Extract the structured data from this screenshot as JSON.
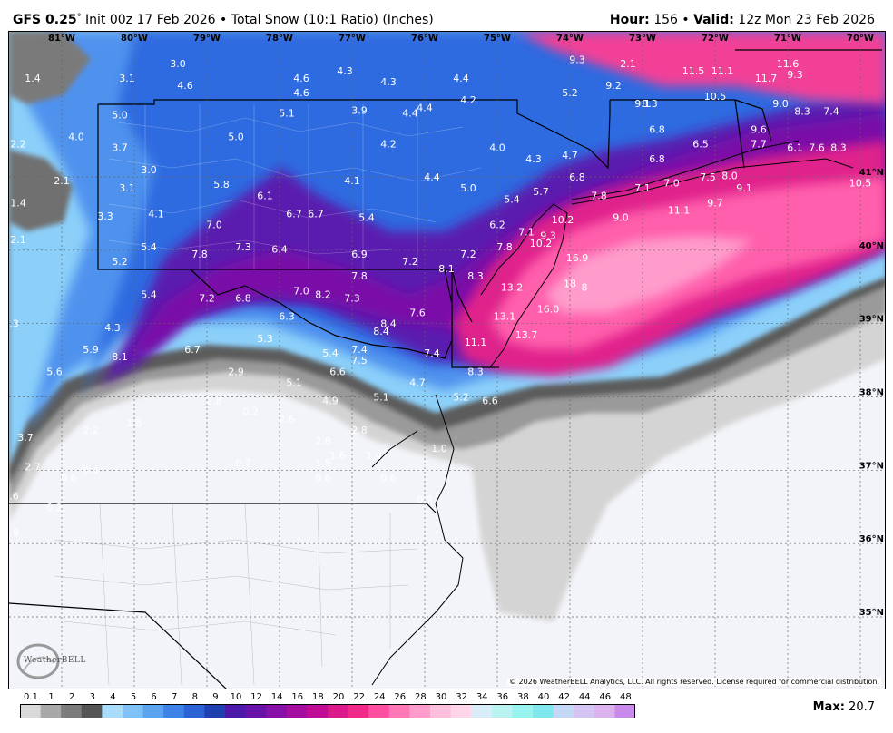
{
  "header": {
    "model": "GFS 0.25",
    "degree": "°",
    "init": "Init 00z 17 Feb 2026",
    "bullet": "•",
    "product": "Total Snow (10:1 Ratio) (Inches)",
    "hour_label": "Hour:",
    "hour_value": "156",
    "valid_label": "Valid:",
    "valid_value": "12z Mon 23 Feb 2026"
  },
  "copyright": "© 2026 WeatherBELL Analytics, LLC. All rights reserved. License required for commercial distribution.",
  "logo_text": "WeatherBELL",
  "max": {
    "label": "Max:",
    "value": "20.7"
  },
  "longitude_ticks": [
    "81°W",
    "80°W",
    "79°W",
    "78°W",
    "77°W",
    "76°W",
    "75°W",
    "74°W",
    "73°W",
    "72°W",
    "71°W",
    "70°W"
  ],
  "latitude_ticks": [
    "41°N",
    "40°N",
    "39°N",
    "38°N",
    "37°N",
    "36°N",
    "35°N"
  ],
  "colorbar": {
    "labels": [
      "0.1",
      "1",
      "2",
      "3",
      "4",
      "5",
      "6",
      "7",
      "8",
      "9",
      "10",
      "12",
      "14",
      "16",
      "18",
      "20",
      "22",
      "24",
      "26",
      "28",
      "30",
      "32",
      "34",
      "36",
      "38",
      "40",
      "42",
      "44",
      "46",
      "48"
    ],
    "colors": [
      "#d9d9d9",
      "#a8a8a8",
      "#7c7c7c",
      "#555555",
      "#a8dcfb",
      "#7fc2f8",
      "#5aa4f0",
      "#3d84e6",
      "#2b62d4",
      "#2040b0",
      "#4b1aa8",
      "#6a12a8",
      "#8810a8",
      "#a30ea0",
      "#bf0e95",
      "#db1a8c",
      "#f02a88",
      "#ff4fa0",
      "#ff78b8",
      "#ff9ccb",
      "#ffbfdd",
      "#ffd5e8",
      "#d8ecf9",
      "#b9f2f0",
      "#96f3ee",
      "#7fe8ec",
      "#c4d7f5",
      "#d3c4f2",
      "#dcb2ee",
      "#c78aea"
    ]
  },
  "map_values": [
    {
      "v": "1.4",
      "lon": -81.4,
      "lat": 42.3
    },
    {
      "v": "4.6",
      "lon": -79.3,
      "lat": 42.2
    },
    {
      "v": "3.0",
      "lon": -79.4,
      "lat": 42.5
    },
    {
      "v": "3.1",
      "lon": -80.1,
      "lat": 42.3
    },
    {
      "v": "4.6",
      "lon": -77.7,
      "lat": 42.3
    },
    {
      "v": "4.6",
      "lon": -77.7,
      "lat": 42.1
    },
    {
      "v": "4.3",
      "lon": -77.1,
      "lat": 42.4
    },
    {
      "v": "4.3",
      "lon": -76.5,
      "lat": 42.25
    },
    {
      "v": "4.4",
      "lon": -75.5,
      "lat": 42.3
    },
    {
      "v": "4.2",
      "lon": -75.4,
      "lat": 42.0
    },
    {
      "v": "4.4",
      "lon": -76.0,
      "lat": 41.9
    },
    {
      "v": "4.4",
      "lon": -76.2,
      "lat": 41.82
    },
    {
      "v": "5.0",
      "lon": -80.2,
      "lat": 41.8
    },
    {
      "v": "5.1",
      "lon": -77.9,
      "lat": 41.82
    },
    {
      "v": "3.9",
      "lon": -76.9,
      "lat": 41.86
    },
    {
      "v": "2.2",
      "lon": -81.6,
      "lat": 41.4
    },
    {
      "v": "4.0",
      "lon": -80.8,
      "lat": 41.5
    },
    {
      "v": "3.7",
      "lon": -80.2,
      "lat": 41.35
    },
    {
      "v": "5.0",
      "lon": -78.6,
      "lat": 41.5
    },
    {
      "v": "4.2",
      "lon": -76.5,
      "lat": 41.4
    },
    {
      "v": "4.0",
      "lon": -75.0,
      "lat": 41.35
    },
    {
      "v": "4.3",
      "lon": -74.5,
      "lat": 41.2
    },
    {
      "v": "4.7",
      "lon": -74.0,
      "lat": 41.25
    },
    {
      "v": "2.1",
      "lon": -81.0,
      "lat": 40.9
    },
    {
      "v": "3.0",
      "lon": -79.8,
      "lat": 41.05
    },
    {
      "v": "3.1",
      "lon": -80.1,
      "lat": 40.8
    },
    {
      "v": "1.4",
      "lon": -81.6,
      "lat": 40.6
    },
    {
      "v": "5.8",
      "lon": -78.8,
      "lat": 40.85
    },
    {
      "v": "6.1",
      "lon": -78.2,
      "lat": 40.7
    },
    {
      "v": "4.1",
      "lon": -77.0,
      "lat": 40.9
    },
    {
      "v": "4.4",
      "lon": -75.9,
      "lat": 40.95
    },
    {
      "v": "5.0",
      "lon": -75.4,
      "lat": 40.8
    },
    {
      "v": "5.4",
      "lon": -74.8,
      "lat": 40.65
    },
    {
      "v": "5.7",
      "lon": -74.4,
      "lat": 40.75
    },
    {
      "v": "6.8",
      "lon": -73.9,
      "lat": 40.95
    },
    {
      "v": "7.8",
      "lon": -73.6,
      "lat": 40.7
    },
    {
      "v": "7.1",
      "lon": -73.0,
      "lat": 40.8
    },
    {
      "v": "7.0",
      "lon": -72.6,
      "lat": 40.87
    },
    {
      "v": "7.5",
      "lon": -72.1,
      "lat": 40.95
    },
    {
      "v": "8.0",
      "lon": -71.8,
      "lat": 40.97
    },
    {
      "v": "9.1",
      "lon": -71.6,
      "lat": 40.8
    },
    {
      "v": "10.5",
      "lon": -70.0,
      "lat": 40.87
    },
    {
      "v": "6.8",
      "lon": -72.8,
      "lat": 41.2
    },
    {
      "v": "6.5",
      "lon": -72.2,
      "lat": 41.4
    },
    {
      "v": "6.8",
      "lon": -72.8,
      "lat": 41.6
    },
    {
      "v": "7.7",
      "lon": -71.4,
      "lat": 41.4
    },
    {
      "v": "6.1",
      "lon": -70.9,
      "lat": 41.35
    },
    {
      "v": "7.6",
      "lon": -70.6,
      "lat": 41.35
    },
    {
      "v": "8.3",
      "lon": -70.3,
      "lat": 41.35
    },
    {
      "v": "9.6",
      "lon": -71.4,
      "lat": 41.6
    },
    {
      "v": "9.7",
      "lon": -72.0,
      "lat": 40.6
    },
    {
      "v": "11.1",
      "lon": -72.5,
      "lat": 40.5
    },
    {
      "v": "9.0",
      "lon": -73.3,
      "lat": 40.4
    },
    {
      "v": "10.2",
      "lon": -74.1,
      "lat": 40.37
    },
    {
      "v": "6.7",
      "lon": -77.8,
      "lat": 40.45
    },
    {
      "v": "6.7",
      "lon": -77.5,
      "lat": 40.45
    },
    {
      "v": "5.4",
      "lon": -76.8,
      "lat": 40.4
    },
    {
      "v": "4.1",
      "lon": -79.7,
      "lat": 40.45
    },
    {
      "v": "3.3",
      "lon": -80.4,
      "lat": 40.42
    },
    {
      "v": "2.1",
      "lon": -81.6,
      "lat": 40.1
    },
    {
      "v": "7.0",
      "lon": -78.9,
      "lat": 40.3
    },
    {
      "v": "7.3",
      "lon": -78.5,
      "lat": 40.0
    },
    {
      "v": "6.4",
      "lon": -78.0,
      "lat": 39.97
    },
    {
      "v": "6.2",
      "lon": -75.0,
      "lat": 40.3
    },
    {
      "v": "7.1",
      "lon": -74.6,
      "lat": 40.2
    },
    {
      "v": "9.3",
      "lon": -74.3,
      "lat": 40.15
    },
    {
      "v": "10.2",
      "lon": -74.4,
      "lat": 40.05
    },
    {
      "v": "7.8",
      "lon": -74.9,
      "lat": 40.0
    },
    {
      "v": "5.4",
      "lon": -79.8,
      "lat": 40.0
    },
    {
      "v": "5.2",
      "lon": -80.2,
      "lat": 39.8
    },
    {
      "v": "7.8",
      "lon": -79.1,
      "lat": 39.9
    },
    {
      "v": "6.9",
      "lon": -76.9,
      "lat": 39.9
    },
    {
      "v": "7.2",
      "lon": -76.2,
      "lat": 39.8
    },
    {
      "v": "7.2",
      "lon": -75.4,
      "lat": 39.9
    },
    {
      "v": "8.1",
      "lon": -75.7,
      "lat": 39.7
    },
    {
      "v": "16.9",
      "lon": -73.9,
      "lat": 39.85
    },
    {
      "v": "7.8",
      "lon": -76.9,
      "lat": 39.6
    },
    {
      "v": "8.3",
      "lon": -75.3,
      "lat": 39.6
    },
    {
      "v": "13.2",
      "lon": -74.8,
      "lat": 39.45
    },
    {
      "v": "18",
      "lon": -74.0,
      "lat": 39.5
    },
    {
      "v": "8",
      "lon": -73.8,
      "lat": 39.45
    },
    {
      "v": "5.4",
      "lon": -79.8,
      "lat": 39.35
    },
    {
      "v": "7.2",
      "lon": -79.0,
      "lat": 39.3
    },
    {
      "v": "6.8",
      "lon": -78.5,
      "lat": 39.3
    },
    {
      "v": "7.0",
      "lon": -77.7,
      "lat": 39.4
    },
    {
      "v": "8.2",
      "lon": -77.4,
      "lat": 39.35
    },
    {
      "v": "7.3",
      "lon": -77.0,
      "lat": 39.3
    },
    {
      "v": "7.6",
      "lon": -76.1,
      "lat": 39.1
    },
    {
      "v": "8.4",
      "lon": -76.5,
      "lat": 38.95
    },
    {
      "v": "8.4",
      "lon": -76.6,
      "lat": 38.85
    },
    {
      "v": "6.3",
      "lon": -77.9,
      "lat": 39.05
    },
    {
      "v": "16.0",
      "lon": -74.3,
      "lat": 39.15
    },
    {
      "v": "13.1",
      "lon": -74.9,
      "lat": 39.05
    },
    {
      "v": "13.7",
      "lon": -74.6,
      "lat": 38.8
    },
    {
      "v": "11.1",
      "lon": -75.3,
      "lat": 38.7
    },
    {
      "v": "4.3",
      "lon": -81.7,
      "lat": 38.95
    },
    {
      "v": "4.3",
      "lon": -80.3,
      "lat": 38.9
    },
    {
      "v": "5.9",
      "lon": -80.6,
      "lat": 38.6
    },
    {
      "v": "8.1",
      "lon": -80.2,
      "lat": 38.5
    },
    {
      "v": "6.7",
      "lon": -79.2,
      "lat": 38.6
    },
    {
      "v": "5.3",
      "lon": -78.2,
      "lat": 38.75
    },
    {
      "v": "5.4",
      "lon": -77.3,
      "lat": 38.55
    },
    {
      "v": "7.4",
      "lon": -76.9,
      "lat": 38.6
    },
    {
      "v": "7.5",
      "lon": -76.9,
      "lat": 38.45
    },
    {
      "v": "7.4",
      "lon": -75.9,
      "lat": 38.55
    },
    {
      "v": "6.6",
      "lon": -77.2,
      "lat": 38.3
    },
    {
      "v": "2.9",
      "lon": -78.6,
      "lat": 38.3
    },
    {
      "v": "5.6",
      "lon": -81.1,
      "lat": 38.3
    },
    {
      "v": "8.3",
      "lon": -75.3,
      "lat": 38.3
    },
    {
      "v": "5.1",
      "lon": -77.8,
      "lat": 38.15
    },
    {
      "v": "4.7",
      "lon": -76.1,
      "lat": 38.15
    },
    {
      "v": "5.1",
      "lon": -76.6,
      "lat": 37.95
    },
    {
      "v": "5.2",
      "lon": -75.5,
      "lat": 37.95
    },
    {
      "v": "6.6",
      "lon": -75.1,
      "lat": 37.9
    },
    {
      "v": "4.9",
      "lon": -77.3,
      "lat": 37.9
    },
    {
      "v": "2.8",
      "lon": -78.9,
      "lat": 37.9
    },
    {
      "v": "0.2",
      "lon": -78.4,
      "lat": 37.75
    },
    {
      "v": "2.6",
      "lon": -77.9,
      "lat": 37.65
    },
    {
      "v": "1.5",
      "lon": -80.0,
      "lat": 37.6
    },
    {
      "v": "2.2",
      "lon": -80.6,
      "lat": 37.5
    },
    {
      "v": "3.7",
      "lon": -81.5,
      "lat": 37.4
    },
    {
      "v": "2.8",
      "lon": -76.9,
      "lat": 37.5
    },
    {
      "v": "2.8",
      "lon": -77.4,
      "lat": 37.35
    },
    {
      "v": "1.6",
      "lon": -77.2,
      "lat": 37.15
    },
    {
      "v": "1.4",
      "lon": -76.7,
      "lat": 37.15
    },
    {
      "v": "1.5",
      "lon": -77.4,
      "lat": 37.05
    },
    {
      "v": "1.0",
      "lon": -75.8,
      "lat": 37.25
    },
    {
      "v": "0.7",
      "lon": -78.5,
      "lat": 37.05
    },
    {
      "v": "2.7",
      "lon": -81.4,
      "lat": 37.0
    },
    {
      "v": "0.4",
      "lon": -80.6,
      "lat": 36.95
    },
    {
      "v": "0.6",
      "lon": -80.9,
      "lat": 36.85
    },
    {
      "v": "0.6",
      "lon": -77.4,
      "lat": 36.85
    },
    {
      "v": "0.6",
      "lon": -76.5,
      "lat": 36.85
    },
    {
      "v": "1.6",
      "lon": -81.7,
      "lat": 36.6
    },
    {
      "v": "0.2",
      "lon": -81.1,
      "lat": 36.45
    },
    {
      "v": "0.2",
      "lon": -76.0,
      "lat": 36.55
    },
    {
      "v": "0.9",
      "lon": -81.7,
      "lat": 36.1
    },
    {
      "v": "9.3",
      "lon": -73.9,
      "lat": 42.55
    },
    {
      "v": "2.1",
      "lon": -73.2,
      "lat": 42.5
    },
    {
      "v": "11.5",
      "lon": -72.3,
      "lat": 42.4
    },
    {
      "v": "11.1",
      "lon": -71.9,
      "lat": 42.4
    },
    {
      "v": "11.6",
      "lon": -71.0,
      "lat": 42.5
    },
    {
      "v": "11.7",
      "lon": -71.3,
      "lat": 42.3
    },
    {
      "v": "9.3",
      "lon": -70.9,
      "lat": 42.35
    },
    {
      "v": "9.2",
      "lon": -73.4,
      "lat": 42.2
    },
    {
      "v": "5.2",
      "lon": -74.0,
      "lat": 42.1
    },
    {
      "v": "10.5",
      "lon": -72.0,
      "lat": 42.05
    },
    {
      "v": "9.1",
      "lon": -73.0,
      "lat": 41.95
    },
    {
      "v": "8.3",
      "lon": -72.9,
      "lat": 41.95
    },
    {
      "v": "9.0",
      "lon": -71.1,
      "lat": 41.95
    },
    {
      "v": "8.3",
      "lon": -70.8,
      "lat": 41.85
    },
    {
      "v": "7.4",
      "lon": -70.4,
      "lat": 41.85
    }
  ]
}
